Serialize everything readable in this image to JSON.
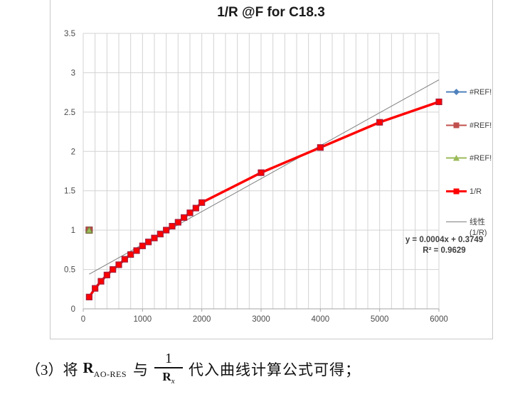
{
  "chart_data": {
    "type": "line",
    "title": "1/R @F for C18.3",
    "xlabel": "",
    "ylabel": "",
    "x_range": [
      0,
      6000
    ],
    "y_range": [
      0,
      3.5
    ],
    "x_minor_unit": 200,
    "y_major_unit": 0.5,
    "grid": true,
    "legend_position": "right",
    "x_ticks": [
      {
        "v": 0,
        "label": "0"
      },
      {
        "v": 1000,
        "label": "1000"
      },
      {
        "v": 2000,
        "label": "2000"
      },
      {
        "v": 3000,
        "label": "3000"
      },
      {
        "v": 4000,
        "label": "4000"
      },
      {
        "v": 5000,
        "label": "5000"
      },
      {
        "v": 6000,
        "label": "6000"
      }
    ],
    "y_ticks": [
      {
        "v": 0,
        "label": "0"
      },
      {
        "v": 0.5,
        "label": "0.5"
      },
      {
        "v": 1,
        "label": "1"
      },
      {
        "v": 1.5,
        "label": "1.5"
      },
      {
        "v": 2,
        "label": "2"
      },
      {
        "v": 2.5,
        "label": "2.5"
      },
      {
        "v": 3,
        "label": "3"
      },
      {
        "v": 3.5,
        "label": "3.5"
      }
    ],
    "series": [
      {
        "name": "#REF!",
        "color": "#4F81BD",
        "marker": "diamond",
        "points": []
      },
      {
        "name": "#REF!",
        "color": "#C0504D",
        "marker": "square",
        "points": [
          [
            100,
            1.0
          ]
        ]
      },
      {
        "name": "#REF!",
        "color": "#9BBB59",
        "marker": "triangle",
        "points": [
          [
            100,
            1.0
          ]
        ]
      },
      {
        "name": "1/R",
        "color": "#FF0000",
        "marker": "square",
        "marker_border": "#A61C3C",
        "points": [
          [
            100,
            0.15
          ],
          [
            200,
            0.26
          ],
          [
            300,
            0.35
          ],
          [
            400,
            0.43
          ],
          [
            500,
            0.5
          ],
          [
            600,
            0.56
          ],
          [
            700,
            0.63
          ],
          [
            800,
            0.69
          ],
          [
            900,
            0.74
          ],
          [
            1000,
            0.8
          ],
          [
            1100,
            0.85
          ],
          [
            1200,
            0.9
          ],
          [
            1300,
            0.95
          ],
          [
            1400,
            1.0
          ],
          [
            1500,
            1.05
          ],
          [
            1600,
            1.1
          ],
          [
            1700,
            1.16
          ],
          [
            1800,
            1.22
          ],
          [
            1900,
            1.28
          ],
          [
            2000,
            1.35
          ],
          [
            3000,
            1.73
          ],
          [
            4000,
            2.05
          ],
          [
            5000,
            2.37
          ],
          [
            6000,
            2.63
          ]
        ]
      }
    ],
    "trendline": {
      "name": "线性 (1/R)",
      "color": "#7F7F7F",
      "equation": "y = 0.0004x + 0.3749",
      "r_squared": "R² = 0.9629",
      "draw_from": [
        100,
        0.44
      ],
      "draw_to": [
        6000,
        2.91
      ]
    },
    "colors": {
      "grid": "#d3d3d3",
      "axis": "#a6a6a6",
      "tick_text": "#4a4a4a"
    }
  },
  "legend": {
    "entries": [
      {
        "label": "#REF!",
        "color": "#4F81BD",
        "marker": "diamond",
        "thick": false
      },
      {
        "label": "#REF!",
        "color": "#C0504D",
        "marker": "square",
        "thick": false
      },
      {
        "label": "#REF!",
        "color": "#9BBB59",
        "marker": "triangle",
        "thick": false
      },
      {
        "label": "1/R",
        "color": "#FF0000",
        "marker": "square",
        "thick": true
      },
      {
        "label": "线性 (1/R)",
        "lines": [
          "线性",
          "(1/R)"
        ],
        "color": "#7F7F7F",
        "marker": "none",
        "thick": false
      }
    ]
  },
  "formula_line": {
    "prefix": "（3）将",
    "r_symbol": "R",
    "r_subscript": "AO-RES",
    "conjunction": "与",
    "fraction_numerator": "1",
    "fraction_denominator_symbol": "R",
    "fraction_denominator_subscript": "x",
    "suffix": "代入曲线计算公式可得；"
  }
}
